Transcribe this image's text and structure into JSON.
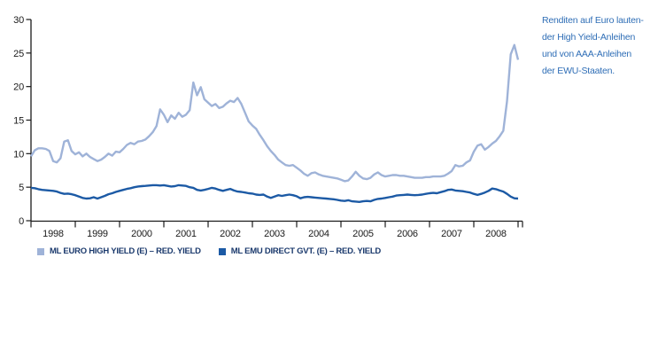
{
  "note": {
    "lines": [
      "Renditen auf Euro lauten-",
      "der High Yield-Anleihen",
      "und von AAA-Anleihen",
      "der EWU-Staaten."
    ]
  },
  "legend": {
    "items": [
      {
        "label": "ML EURO HIGH YIELD (E) – RED. YIELD",
        "color": "#9fb3d8"
      },
      {
        "label": "ML EMU DIRECT GVT. (E) – RED. YIELD",
        "color": "#1c5aa5"
      }
    ]
  },
  "colors": {
    "high_yield_line": "#9fb3d8",
    "gvt_line": "#1c5aa5",
    "axis": "#1a1a1a",
    "note_text": "#2f6eb6",
    "legend_text": "#1b3a6d"
  },
  "chart_data": {
    "type": "line",
    "title": "",
    "xlabel": "",
    "ylabel": "",
    "x_axis": {
      "unit": "year",
      "start_year": 1998,
      "months_per_point": 1,
      "tick_years": [
        1998,
        1999,
        2000,
        2001,
        2002,
        2003,
        2004,
        2005,
        2006,
        2007,
        2008,
        2009
      ],
      "tick_labels": [
        "1998",
        "1999",
        "2000",
        "2001",
        "2002",
        "2003",
        "2004",
        "2005",
        "2006",
        "2007",
        "2008"
      ]
    },
    "y_axis": {
      "min": 0,
      "max": 30,
      "ticks": [
        0,
        5,
        10,
        15,
        20,
        25,
        30
      ]
    },
    "grid": false,
    "legend_position": "bottom",
    "series": [
      {
        "name": "ML EURO HIGH YIELD (E) – RED. YIELD",
        "color": "#9fb3d8",
        "values": [
          9.6,
          10.5,
          10.8,
          10.8,
          10.7,
          10.4,
          8.9,
          8.7,
          9.3,
          11.8,
          12.0,
          10.4,
          9.9,
          10.2,
          9.6,
          10.0,
          9.5,
          9.2,
          8.9,
          9.1,
          9.5,
          10.0,
          9.7,
          10.3,
          10.2,
          10.7,
          11.3,
          11.6,
          11.4,
          11.8,
          11.9,
          12.1,
          12.6,
          13.2,
          14.1,
          16.6,
          15.8,
          14.7,
          15.7,
          15.2,
          16.1,
          15.5,
          15.8,
          16.5,
          20.6,
          18.7,
          19.9,
          18.1,
          17.6,
          17.1,
          17.4,
          16.8,
          17.0,
          17.5,
          17.9,
          17.7,
          18.3,
          17.4,
          16.1,
          14.8,
          14.2,
          13.7,
          12.8,
          12.0,
          11.1,
          10.4,
          9.8,
          9.1,
          8.7,
          8.3,
          8.2,
          8.3,
          7.9,
          7.5,
          7.0,
          6.7,
          7.1,
          7.2,
          6.9,
          6.7,
          6.6,
          6.5,
          6.4,
          6.3,
          6.1,
          5.9,
          6.0,
          6.6,
          7.3,
          6.7,
          6.3,
          6.2,
          6.4,
          6.9,
          7.2,
          6.8,
          6.6,
          6.7,
          6.8,
          6.8,
          6.7,
          6.7,
          6.6,
          6.5,
          6.4,
          6.4,
          6.4,
          6.5,
          6.5,
          6.6,
          6.6,
          6.6,
          6.7,
          7.0,
          7.4,
          8.3,
          8.1,
          8.2,
          8.7,
          9.0,
          10.3,
          11.2,
          11.4,
          10.6,
          11.0,
          11.5,
          11.9,
          12.6,
          13.4,
          17.8,
          24.8,
          26.2,
          24.0
        ]
      },
      {
        "name": "ML EMU DIRECT GVT. (E) – RED. YIELD",
        "color": "#1c5aa5",
        "values": [
          4.9,
          4.85,
          4.7,
          4.6,
          4.55,
          4.5,
          4.45,
          4.35,
          4.15,
          4.0,
          4.05,
          3.95,
          3.8,
          3.6,
          3.4,
          3.3,
          3.35,
          3.5,
          3.3,
          3.5,
          3.7,
          3.95,
          4.1,
          4.3,
          4.45,
          4.6,
          4.75,
          4.85,
          5.0,
          5.1,
          5.15,
          5.2,
          5.25,
          5.3,
          5.3,
          5.25,
          5.3,
          5.2,
          5.1,
          5.15,
          5.3,
          5.25,
          5.2,
          5.0,
          4.9,
          4.6,
          4.5,
          4.6,
          4.75,
          4.9,
          4.8,
          4.6,
          4.45,
          4.6,
          4.75,
          4.5,
          4.35,
          4.3,
          4.2,
          4.1,
          4.05,
          3.9,
          3.85,
          3.9,
          3.6,
          3.4,
          3.6,
          3.8,
          3.7,
          3.8,
          3.9,
          3.8,
          3.65,
          3.35,
          3.5,
          3.55,
          3.5,
          3.45,
          3.4,
          3.35,
          3.3,
          3.25,
          3.2,
          3.1,
          3.0,
          2.95,
          3.05,
          2.9,
          2.85,
          2.8,
          2.9,
          2.95,
          2.9,
          3.1,
          3.25,
          3.3,
          3.4,
          3.5,
          3.6,
          3.75,
          3.8,
          3.85,
          3.9,
          3.85,
          3.8,
          3.85,
          3.9,
          4.0,
          4.1,
          4.15,
          4.1,
          4.25,
          4.4,
          4.6,
          4.65,
          4.5,
          4.45,
          4.4,
          4.3,
          4.2,
          4.0,
          3.85,
          4.0,
          4.2,
          4.45,
          4.8,
          4.7,
          4.5,
          4.35,
          4.0,
          3.6,
          3.35,
          3.3
        ]
      }
    ]
  }
}
